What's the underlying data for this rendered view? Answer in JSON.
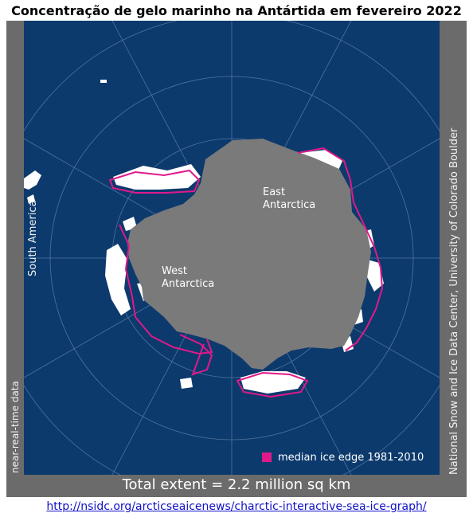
{
  "title": "Concentração de gelo marinho na Antártida em fevereiro 2022",
  "map": {
    "labels": {
      "east": "East\nAntarctica",
      "west": "West\nAntarctica"
    },
    "side_labels": {
      "left_top": "South America",
      "left_bottom": "near-real-time data",
      "right": "National Snow and Ice Data Center, University of Colorado Boulder"
    },
    "legend": {
      "label": "median ice edge 1981-2010",
      "color": "#e0198a"
    },
    "total_extent": "Total extent = 2.2 million sq km",
    "colors": {
      "ocean": "#0c3a6d",
      "land": "#7a7a7a",
      "sea_ice": "#ffffff",
      "frame": "#6b6b6b",
      "median_edge": "#e0198a"
    }
  },
  "source_url": "http://nsidc.org/arcticseaicenews/charctic-interactive-sea-ice-graph/"
}
